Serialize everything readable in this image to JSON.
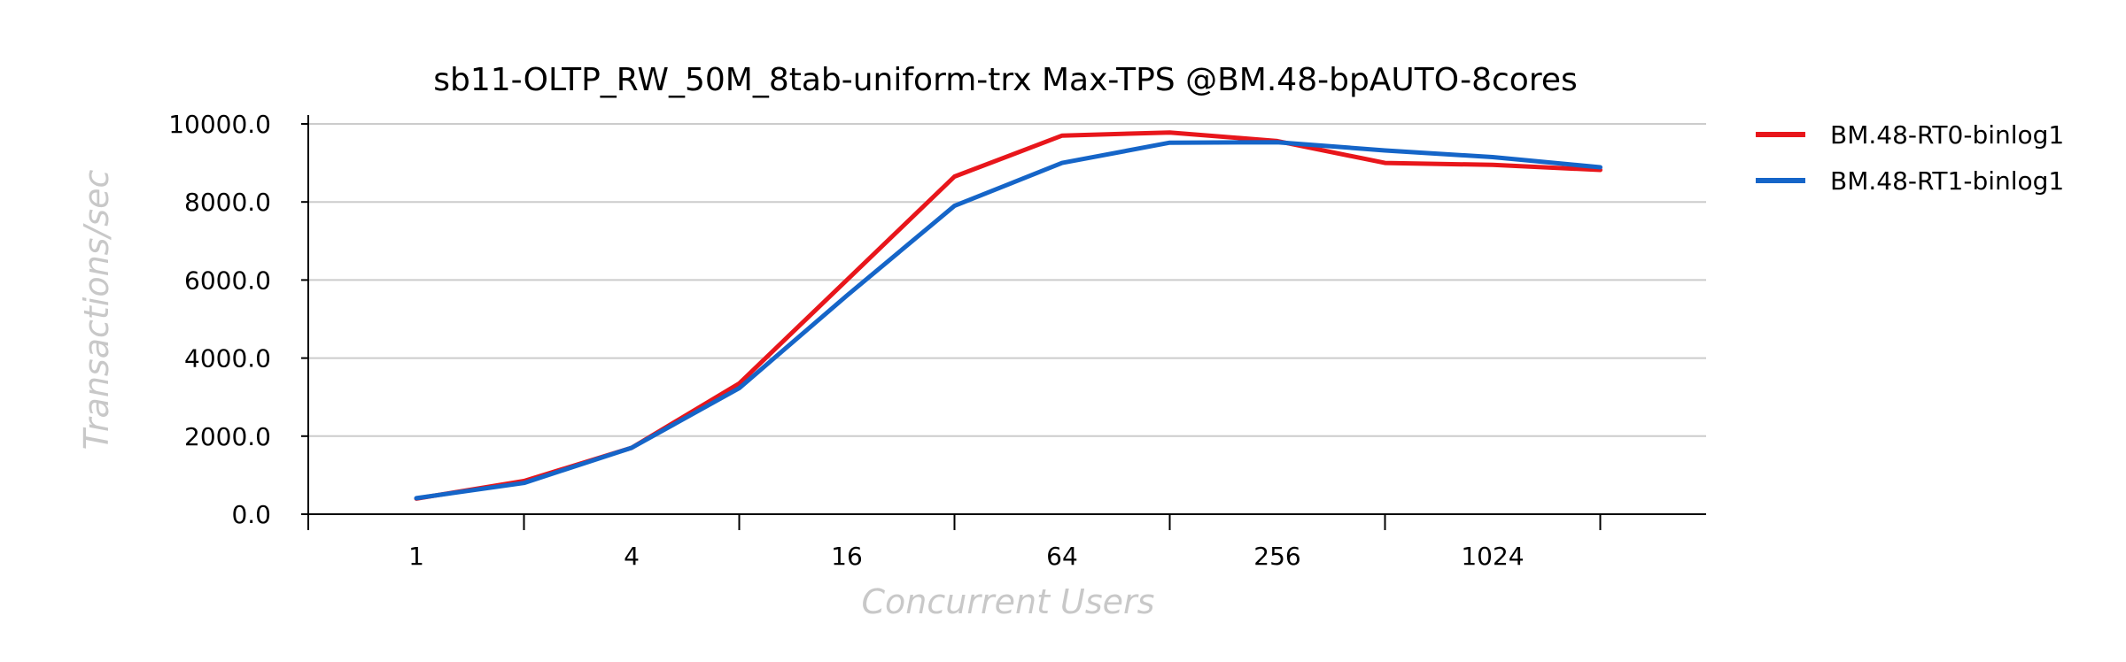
{
  "chart_data": {
    "type": "line",
    "title": "sb11-OLTP_RW_50M_8tab-uniform-trx Max-TPS @BM.48-bpAUTO-8cores",
    "xlabel": "Concurrent Users",
    "ylabel": "Transactions/sec",
    "x_scale": "log2",
    "x": [
      1,
      2,
      4,
      8,
      16,
      32,
      64,
      128,
      256,
      512,
      1024,
      2048
    ],
    "x_tick_labels": [
      "1",
      "4",
      "16",
      "64",
      "256",
      "1024"
    ],
    "y_tick_labels": [
      "0.0",
      "2000.0",
      "4000.0",
      "6000.0",
      "8000.0",
      "10000.0"
    ],
    "ylim": [
      0,
      10000
    ],
    "grid": "horizontal",
    "legend_position": "right",
    "series": [
      {
        "name": "BM.48-RT0-binlog1",
        "color": "#e8161b",
        "values": [
          400,
          850,
          1700,
          3350,
          6000,
          8650,
          9700,
          9780,
          9560,
          9000,
          8950,
          8820
        ]
      },
      {
        "name": "BM.48-RT1-binlog1",
        "color": "#1565c8",
        "values": [
          410,
          800,
          1700,
          3230,
          5600,
          7900,
          9000,
          9520,
          9530,
          9320,
          9150,
          8890
        ]
      }
    ]
  }
}
